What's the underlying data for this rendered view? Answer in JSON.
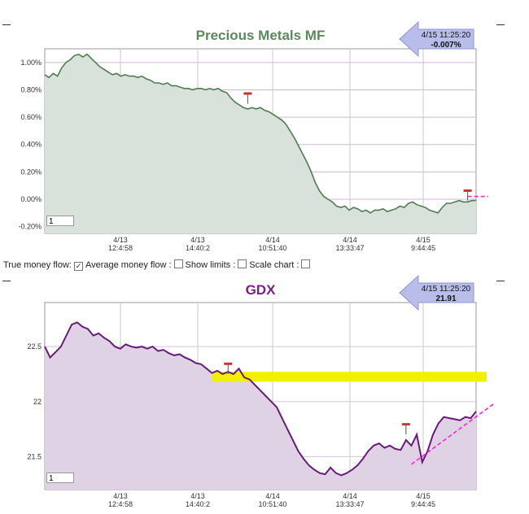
{
  "controls": {
    "true_money_flow_label": "True money flow:",
    "true_money_flow_checked": true,
    "average_money_flow_label": "Average money flow :",
    "average_money_flow_checked": false,
    "show_limits_label": "Show limits :",
    "show_limits_checked": false,
    "scale_chart_label": "Scale chart :",
    "scale_chart_checked": false
  },
  "chart_data": [
    {
      "type": "area",
      "title": "Precious Metals MF",
      "title_color": "#5a8a5a",
      "line_color": "#4f7d4f",
      "fill_color": "#d8e2da",
      "ylim": [
        -0.25,
        1.1
      ],
      "yticks": [
        1.0,
        0.8,
        0.6,
        0.4,
        0.2,
        0.0,
        -0.2
      ],
      "ytick_labels": [
        "1.00%",
        "0.80%",
        "0.60%",
        "0.40%",
        "0.20%",
        "0.00%",
        "-0.20%"
      ],
      "xticks": [
        {
          "date": "4/13",
          "time": "12:4:58"
        },
        {
          "date": "4/13",
          "time": "14:40:2"
        },
        {
          "date": "4/14",
          "time": "10:51:40"
        },
        {
          "date": "4/14",
          "time": "13:33:47"
        },
        {
          "date": "4/15",
          "time": "9:44:45"
        }
      ],
      "callout": {
        "time": "4/15 11:25:20",
        "value": "-0.007%"
      },
      "input_value": "1",
      "values": [
        0.91,
        0.89,
        0.92,
        0.9,
        0.96,
        1.0,
        1.02,
        1.05,
        1.06,
        1.04,
        1.06,
        1.03,
        1.0,
        0.97,
        0.95,
        0.93,
        0.91,
        0.92,
        0.9,
        0.91,
        0.9,
        0.9,
        0.89,
        0.9,
        0.88,
        0.87,
        0.85,
        0.85,
        0.84,
        0.85,
        0.83,
        0.83,
        0.82,
        0.81,
        0.81,
        0.8,
        0.81,
        0.81,
        0.8,
        0.81,
        0.8,
        0.81,
        0.79,
        0.78,
        0.74,
        0.71,
        0.69,
        0.67,
        0.66,
        0.67,
        0.66,
        0.67,
        0.65,
        0.64,
        0.62,
        0.6,
        0.58,
        0.55,
        0.5,
        0.45,
        0.39,
        0.33,
        0.27,
        0.2,
        0.12,
        0.06,
        0.02,
        0.0,
        -0.02,
        -0.05,
        -0.06,
        -0.05,
        -0.08,
        -0.06,
        -0.07,
        -0.09,
        -0.08,
        -0.1,
        -0.08,
        -0.08,
        -0.07,
        -0.09,
        -0.08,
        -0.07,
        -0.05,
        -0.06,
        -0.03,
        -0.02,
        -0.04,
        -0.05,
        -0.06,
        -0.08,
        -0.09,
        -0.1,
        -0.06,
        -0.03,
        -0.03,
        -0.02,
        -0.01,
        -0.02,
        -0.02,
        -0.01,
        -0.01
      ],
      "spikes": [
        {
          "index": 48,
          "value": 0.77
        },
        {
          "index": 100,
          "value": 0.06
        }
      ],
      "trend": {
        "from_index": 100,
        "to_index": 115,
        "from_value": 0.02,
        "to_value": 0.02
      }
    },
    {
      "type": "area",
      "title": "GDX",
      "title_color": "#7a1f86",
      "line_color": "#6a1b7a",
      "fill_color": "#e0d2e5",
      "ylim": [
        21.2,
        22.9
      ],
      "yticks": [
        22.5,
        22.0,
        21.5
      ],
      "ytick_labels": [
        "22.5",
        "22",
        "21.5"
      ],
      "xticks": [
        {
          "date": "4/13",
          "time": "12:4:58"
        },
        {
          "date": "4/13",
          "time": "14:40:2"
        },
        {
          "date": "4/14",
          "time": "10:51:40"
        },
        {
          "date": "4/14",
          "time": "13:33:47"
        },
        {
          "date": "4/15",
          "time": "9:44:45"
        }
      ],
      "callout": {
        "time": "4/15 11:25:20",
        "value": "21.91"
      },
      "input_value": "1",
      "values": [
        22.5,
        22.4,
        22.45,
        22.5,
        22.6,
        22.7,
        22.72,
        22.68,
        22.66,
        22.6,
        22.62,
        22.58,
        22.55,
        22.5,
        22.48,
        22.52,
        22.5,
        22.49,
        22.5,
        22.48,
        22.5,
        22.46,
        22.47,
        22.44,
        22.42,
        22.43,
        22.4,
        22.38,
        22.35,
        22.34,
        22.3,
        22.26,
        22.28,
        22.25,
        22.27,
        22.25,
        22.3,
        22.22,
        22.2,
        22.15,
        22.1,
        22.05,
        22.0,
        21.95,
        21.85,
        21.75,
        21.65,
        21.55,
        21.48,
        21.42,
        21.38,
        21.35,
        21.34,
        21.4,
        21.35,
        21.33,
        21.35,
        21.38,
        21.42,
        21.48,
        21.55,
        21.6,
        21.62,
        21.58,
        21.6,
        21.57,
        21.56,
        21.65,
        21.6,
        21.7,
        21.45,
        21.55,
        21.7,
        21.8,
        21.86,
        21.85,
        21.84,
        21.83,
        21.86,
        21.85,
        21.91
      ],
      "spikes": [
        {
          "index": 34,
          "value": 22.34
        },
        {
          "index": 67,
          "value": 21.79
        }
      ],
      "band": {
        "low": 22.18,
        "high": 22.27,
        "from_index": 31,
        "to_index": 95
      },
      "trend": {
        "from_index": 68,
        "to_index": 95,
        "from_value": 21.43,
        "to_value": 21.95
      }
    }
  ]
}
